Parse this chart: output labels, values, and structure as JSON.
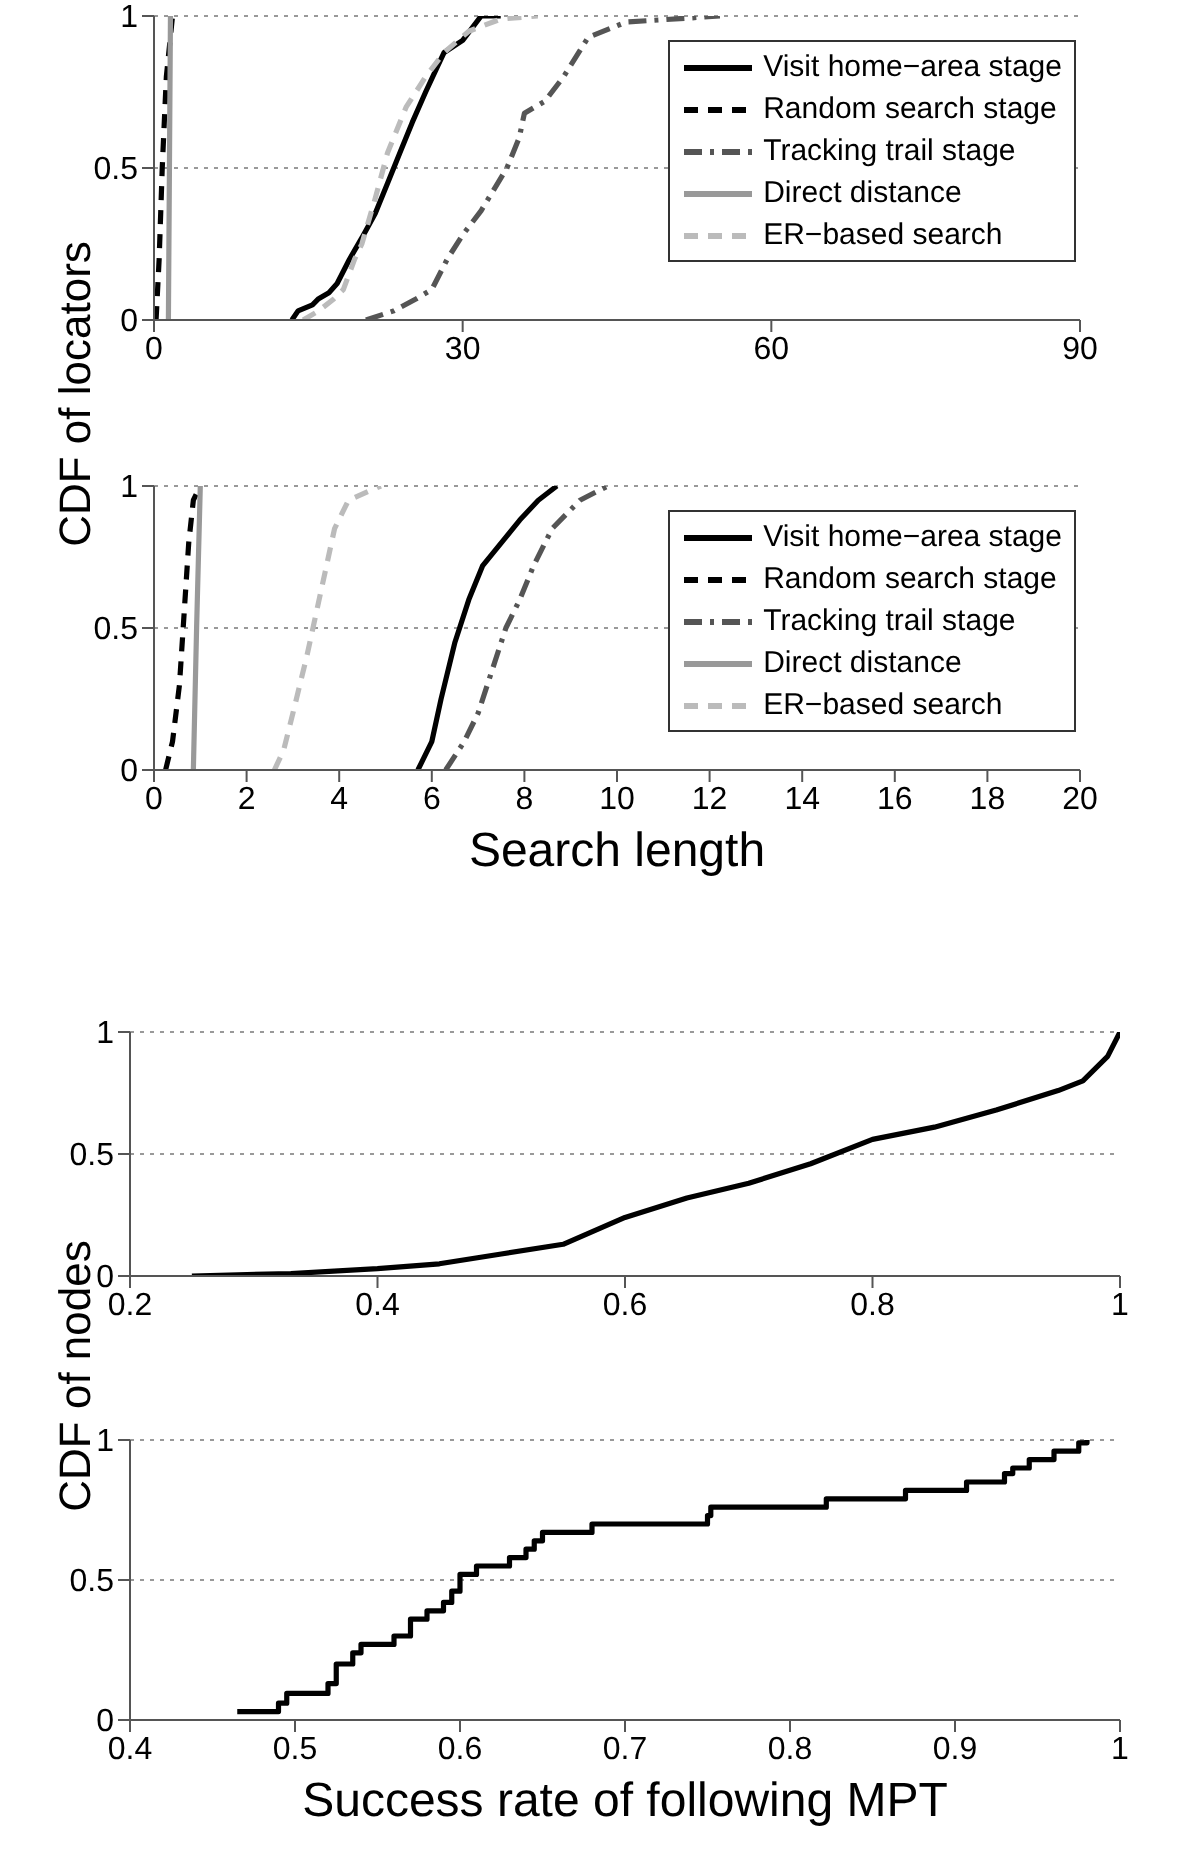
{
  "chart_data": [
    {
      "type": "line",
      "ylabel": "CDF of locators",
      "xlim": [
        0,
        90
      ],
      "xticks": [
        0,
        30,
        60,
        90
      ],
      "ylim": [
        0,
        1
      ],
      "yticks": [
        0,
        0.5,
        1
      ],
      "grid": "y",
      "legend": "right",
      "series": [
        {
          "name": "Visit home−area stage",
          "color": "#000000",
          "line_style": "solid",
          "x": [
            13.4,
            14,
            15.4,
            16,
            17,
            17.8,
            19,
            20.2,
            21.5,
            22.7,
            23.9,
            25.1,
            26.4,
            27.5,
            28.2,
            30,
            31.8,
            33.7
          ],
          "values": [
            0,
            0.03,
            0.05,
            0.07,
            0.09,
            0.12,
            0.2,
            0.27,
            0.35,
            0.45,
            0.55,
            0.65,
            0.75,
            0.83,
            0.88,
            0.92,
            1,
            1
          ]
        },
        {
          "name": "Random search stage",
          "color": "#000000",
          "line_style": "dashed",
          "x": [
            0.2,
            0.5,
            0.8,
            1.2,
            1.8
          ],
          "values": [
            0,
            0.2,
            0.5,
            0.8,
            1
          ]
        },
        {
          "name": "Tracking trail stage",
          "color": "#555555",
          "line_style": "dashdot",
          "x": [
            20.6,
            23.3,
            25.5,
            27,
            28.5,
            30,
            31.8,
            34.3,
            35.5,
            36,
            38,
            39.8,
            42.2,
            45.9,
            55
          ],
          "values": [
            0,
            0.03,
            0.07,
            0.1,
            0.2,
            0.28,
            0.36,
            0.5,
            0.6,
            0.68,
            0.72,
            0.8,
            0.93,
            0.98,
            1
          ]
        },
        {
          "name": "Direct distance",
          "color": "#999999",
          "line_style": "solid",
          "x": [
            1.4,
            1.5,
            1.6
          ],
          "values": [
            0,
            0.5,
            1
          ]
        },
        {
          "name": "ER−based search",
          "color": "#bbbbbb",
          "line_style": "dashed",
          "x": [
            14.5,
            16,
            17.5,
            18.4,
            19.5,
            20.2,
            21.5,
            22.7,
            24.5,
            26.4,
            28.2,
            30.6,
            33.7,
            37.3
          ],
          "values": [
            0,
            0.03,
            0.07,
            0.1,
            0.2,
            0.25,
            0.4,
            0.55,
            0.7,
            0.8,
            0.88,
            0.95,
            0.99,
            1
          ]
        }
      ]
    },
    {
      "type": "line",
      "xlabel": "Search length",
      "xlim": [
        0,
        20
      ],
      "xticks": [
        0,
        2,
        4,
        6,
        8,
        10,
        12,
        14,
        16,
        18,
        20
      ],
      "ylim": [
        0,
        1
      ],
      "yticks": [
        0,
        0.5,
        1
      ],
      "grid": "y",
      "legend": "right",
      "series": [
        {
          "name": "Visit home−area stage",
          "color": "#000000",
          "line_style": "solid",
          "x": [
            5.7,
            6,
            6.2,
            6.5,
            6.8,
            7.1,
            7.5,
            7.9,
            8.3,
            8.7
          ],
          "values": [
            0,
            0.1,
            0.25,
            0.45,
            0.6,
            0.72,
            0.8,
            0.88,
            0.95,
            1
          ]
        },
        {
          "name": "Random search stage",
          "color": "#000000",
          "line_style": "dashed",
          "x": [
            0.25,
            0.4,
            0.55,
            0.65,
            0.75,
            0.85,
            1
          ],
          "values": [
            0,
            0.1,
            0.3,
            0.55,
            0.8,
            0.95,
            1
          ]
        },
        {
          "name": "Tracking trail stage",
          "color": "#555555",
          "line_style": "dashdot",
          "x": [
            6.3,
            6.7,
            7,
            7.3,
            7.6,
            7.9,
            8.2,
            8.6,
            9.2,
            9.8
          ],
          "values": [
            0,
            0.1,
            0.2,
            0.35,
            0.5,
            0.6,
            0.72,
            0.85,
            0.95,
            1
          ]
        },
        {
          "name": "Direct distance",
          "color": "#999999",
          "line_style": "solid",
          "x": [
            0.85,
            0.92,
            1
          ],
          "values": [
            0,
            0.5,
            1
          ]
        },
        {
          "name": "ER−based search",
          "color": "#bbbbbb",
          "line_style": "dashed",
          "x": [
            2.6,
            2.8,
            3,
            3.3,
            3.5,
            3.7,
            3.9,
            4.2,
            4.9
          ],
          "values": [
            0,
            0.07,
            0.2,
            0.4,
            0.55,
            0.7,
            0.85,
            0.95,
            1
          ]
        }
      ]
    },
    {
      "type": "line",
      "ylabel": "CDF of nodes",
      "xlim": [
        0.2,
        1
      ],
      "xticks": [
        0.2,
        0.4,
        0.6,
        0.8,
        1
      ],
      "ylim": [
        0,
        1
      ],
      "yticks": [
        0,
        0.5,
        1
      ],
      "grid": "y",
      "series": [
        {
          "color": "#000000",
          "line_style": "solid",
          "x": [
            0.25,
            0.33,
            0.4,
            0.45,
            0.5,
            0.55,
            0.6,
            0.65,
            0.7,
            0.75,
            0.8,
            0.85,
            0.9,
            0.95,
            0.97,
            0.99,
            1
          ],
          "values": [
            0,
            0.01,
            0.03,
            0.05,
            0.09,
            0.13,
            0.24,
            0.32,
            0.38,
            0.46,
            0.56,
            0.61,
            0.68,
            0.76,
            0.8,
            0.9,
            1
          ]
        }
      ]
    },
    {
      "type": "step",
      "xlabel": "Success rate of following MPT",
      "xlim": [
        0.4,
        1
      ],
      "xticks": [
        0.4,
        0.5,
        0.6,
        0.7,
        0.8,
        0.9,
        1
      ],
      "ylim": [
        0,
        1
      ],
      "yticks": [
        0,
        0.5,
        1
      ],
      "grid": "y",
      "series": [
        {
          "color": "#000000",
          "line_style": "solid",
          "x": [
            0.465,
            0.49,
            0.495,
            0.52,
            0.525,
            0.535,
            0.54,
            0.56,
            0.57,
            0.58,
            0.59,
            0.595,
            0.6,
            0.61,
            0.63,
            0.64,
            0.645,
            0.65,
            0.68,
            0.75,
            0.752,
            0.822,
            0.87,
            0.907,
            0.93,
            0.935,
            0.945,
            0.96,
            0.975,
            0.98
          ],
          "values": [
            0.03,
            0.06,
            0.095,
            0.13,
            0.2,
            0.24,
            0.27,
            0.3,
            0.36,
            0.39,
            0.42,
            0.46,
            0.52,
            0.55,
            0.58,
            0.61,
            0.64,
            0.67,
            0.7,
            0.73,
            0.76,
            0.79,
            0.82,
            0.85,
            0.88,
            0.9,
            0.93,
            0.96,
            0.99,
            1
          ]
        }
      ]
    }
  ]
}
